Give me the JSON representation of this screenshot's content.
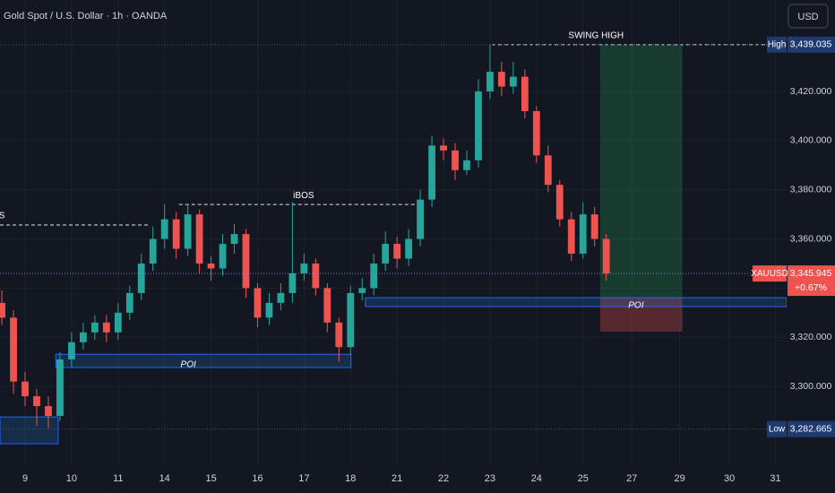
{
  "chart_data": {
    "type": "candlestick",
    "title": "Gold Spot / U.S. Dollar · 1h · OANDA",
    "currency": "USD",
    "up_color": "#26a69a",
    "down_color": "#ef5350",
    "grid": true,
    "xlim": [
      -0.54,
      16.38
    ],
    "ylim": [
      3267.6,
      3457.2
    ],
    "xticks": [
      {
        "value": 0,
        "label": "9"
      },
      {
        "value": 1,
        "label": "10"
      },
      {
        "value": 2,
        "label": "11"
      },
      {
        "value": 3,
        "label": "14"
      },
      {
        "value": 4,
        "label": "15"
      },
      {
        "value": 5,
        "label": "16"
      },
      {
        "value": 6,
        "label": "17"
      },
      {
        "value": 7,
        "label": "18"
      },
      {
        "value": 8,
        "label": "21"
      },
      {
        "value": 9,
        "label": "22"
      },
      {
        "value": 10,
        "label": "23"
      },
      {
        "value": 11,
        "label": "24"
      },
      {
        "value": 12,
        "label": "25"
      },
      {
        "value": 13.05,
        "label": "27"
      },
      {
        "value": 14.08,
        "label": "29"
      },
      {
        "value": 15.15,
        "label": "30"
      },
      {
        "value": 16.14,
        "label": "31"
      }
    ],
    "yticks": [
      {
        "value": 3300,
        "label": "3,300.000"
      },
      {
        "value": 3320,
        "label": "3,320.000"
      },
      {
        "value": 3340,
        "label": "3,340.000"
      },
      {
        "value": 3360,
        "label": "3,360.000"
      },
      {
        "value": 3380,
        "label": "3,380.000"
      },
      {
        "value": 3400,
        "label": "3,400.000"
      },
      {
        "value": 3420,
        "label": "3,420.000"
      }
    ],
    "x": [
      -0.5,
      -0.25,
      0,
      0.25,
      0.5,
      0.75,
      1,
      1.25,
      1.5,
      1.75,
      2,
      2.25,
      2.5,
      2.75,
      3,
      3.25,
      3.5,
      3.75,
      4,
      4.25,
      4.5,
      4.75,
      5,
      5.25,
      5.5,
      5.75,
      6,
      6.25,
      6.5,
      6.75,
      7,
      7.25,
      7.5,
      7.75,
      8,
      8.25,
      8.5,
      8.75,
      9,
      9.25,
      9.5,
      9.75,
      10,
      10.25,
      10.5,
      10.75,
      11,
      11.25,
      11.5,
      11.75,
      12,
      12.25,
      12.5
    ],
    "open": [
      3334,
      3328,
      3302,
      3296,
      3292,
      3288,
      3311,
      3318,
      3322,
      3326,
      3322,
      3330,
      3338,
      3350,
      3360,
      3368,
      3356,
      3370,
      3350,
      3348,
      3358,
      3362,
      3340,
      3328,
      3334,
      3338,
      3346,
      3350,
      3340,
      3326,
      3316,
      3338,
      3340,
      3350,
      3358,
      3352,
      3360,
      3376,
      3398,
      3396,
      3388,
      3392,
      3420,
      3428,
      3422,
      3426,
      3412,
      3394,
      3382,
      3368,
      3354,
      3370,
      3360
    ],
    "high": [
      3339,
      3331,
      3306,
      3299,
      3296,
      3314,
      3322,
      3326,
      3329,
      3329,
      3334,
      3341,
      3354,
      3365,
      3374,
      3371,
      3374,
      3372,
      3353,
      3362,
      3366,
      3364,
      3342,
      3338,
      3342,
      3375,
      3354,
      3352,
      3342,
      3328,
      3341,
      3344,
      3354,
      3363,
      3361,
      3364,
      3380,
      3402,
      3401,
      3399,
      3396,
      3425,
      3439,
      3432,
      3432,
      3429,
      3414,
      3398,
      3384,
      3371,
      3375,
      3373,
      3362
    ],
    "low": [
      3325,
      3297,
      3292,
      3284,
      3283,
      3286,
      3308,
      3315,
      3319,
      3318,
      3319,
      3327,
      3335,
      3347,
      3356,
      3352,
      3353,
      3346,
      3343,
      3345,
      3354,
      3336,
      3324,
      3325,
      3331,
      3334,
      3343,
      3337,
      3322,
      3310,
      3313,
      3335,
      3337,
      3347,
      3348,
      3349,
      3357,
      3373,
      3392,
      3384,
      3386,
      3389,
      3417,
      3418,
      3419,
      3409,
      3391,
      3379,
      3365,
      3351,
      3352,
      3357,
      3343
    ],
    "close": [
      3328,
      3302,
      3296,
      3292,
      3288,
      3311,
      3318,
      3322,
      3326,
      3322,
      3330,
      3338,
      3350,
      3360,
      3368,
      3356,
      3370,
      3350,
      3348,
      3358,
      3362,
      3340,
      3328,
      3334,
      3338,
      3346,
      3350,
      3340,
      3326,
      3316,
      3338,
      3340,
      3350,
      3358,
      3352,
      3360,
      3376,
      3398,
      3396,
      3388,
      3392,
      3420,
      3428,
      3422,
      3426,
      3412,
      3394,
      3382,
      3368,
      3354,
      3370,
      3360,
      3346
    ],
    "levels": [
      {
        "label": "SWING HIGH",
        "value": 3439.035,
        "x": [
          10.04,
          16.38
        ],
        "label_x": 12.28
      },
      {
        "label": "iBOS",
        "value": 3374,
        "x": [
          3.31,
          8.52
        ],
        "label_x": 5.99
      },
      {
        "label": "iBOS",
        "value": 3365.7,
        "x": [
          -0.54,
          2.64
        ],
        "label_x": -0.66
      }
    ],
    "zones": [
      {
        "label": "POI",
        "top": 3313.1,
        "bottom": 3307.7,
        "x": [
          0.66,
          7.01
        ],
        "label_x": 3.51
      },
      {
        "label": "POI",
        "top": 3336.1,
        "bottom": 3332.5,
        "x": [
          7.32,
          16.38
        ],
        "label_x": 13.14
      },
      {
        "top": 3287.6,
        "bottom": 3276.7,
        "x": [
          -0.54,
          0.71
        ]
      }
    ],
    "position": {
      "entry": 3335.8,
      "target": 3439.035,
      "stop": 3322.3,
      "x": [
        12.37,
        14.14
      ]
    },
    "markers": [
      {
        "name": "High",
        "value": 3439.035,
        "label": "3,439.035"
      },
      {
        "name": "XAUUSD",
        "value": 3345.945,
        "label": "3,345.945",
        "change": "+0.67%"
      },
      {
        "name": "Low",
        "value": 3282.665,
        "label": "3,282.665"
      }
    ]
  }
}
